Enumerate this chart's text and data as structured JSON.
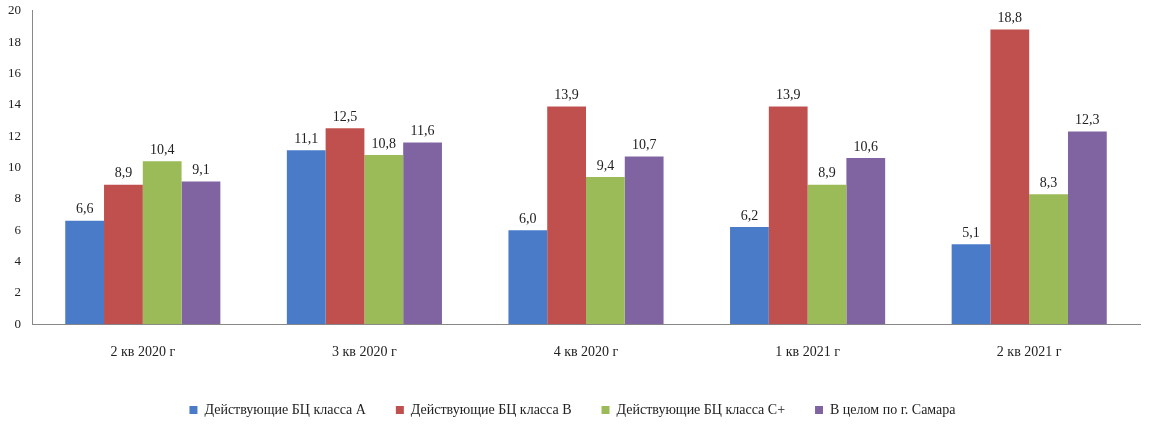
{
  "chart_data": {
    "type": "bar",
    "categories": [
      "2 кв 2020 г",
      "3 кв 2020 г",
      "4 кв 2020 г",
      "1 кв 2021 г",
      "2 кв 2021 г"
    ],
    "series": [
      {
        "name": "Действующие БЦ класса А",
        "color": "#4a7bc8",
        "values": [
          6.6,
          11.1,
          6.0,
          6.2,
          5.1
        ],
        "value_labels": [
          "6,6",
          "11,1",
          "6,0",
          "6,2",
          "5,1"
        ]
      },
      {
        "name": "Действующие БЦ класса В",
        "color": "#c0504d",
        "values": [
          8.9,
          12.5,
          13.9,
          13.9,
          18.8
        ],
        "value_labels": [
          "8,9",
          "12,5",
          "13,9",
          "13,9",
          "18,8"
        ]
      },
      {
        "name": "Действующие БЦ класса С+",
        "color": "#9bbb59",
        "values": [
          10.4,
          10.8,
          9.4,
          8.9,
          8.3
        ],
        "value_labels": [
          "10,4",
          "10,8",
          "9,4",
          "8,9",
          "8,3"
        ]
      },
      {
        "name": "В целом по г. Самара",
        "color": "#8064a2",
        "values": [
          9.1,
          11.6,
          10.7,
          10.6,
          12.3
        ],
        "value_labels": [
          "9,1",
          "11,6",
          "10,7",
          "10,6",
          "12,3"
        ]
      }
    ],
    "ylim": [
      0,
      20
    ],
    "yticks": [
      0,
      2,
      4,
      6,
      8,
      10,
      12,
      14,
      16,
      18,
      20
    ],
    "grid": false,
    "legend": "bottom"
  }
}
